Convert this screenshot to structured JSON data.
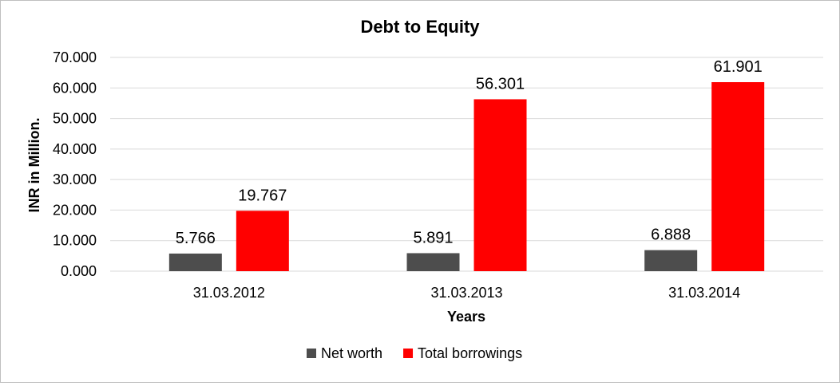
{
  "chart_data": {
    "type": "bar",
    "title": "Debt to Equity",
    "xlabel": "Years",
    "ylabel": "INR in Million.",
    "categories": [
      "31.03.2012",
      "31.03.2013",
      "31.03.2014"
    ],
    "ylim": [
      0,
      70
    ],
    "yticks": [
      "0.000",
      "10.000",
      "20.000",
      "30.000",
      "40.000",
      "50.000",
      "60.000",
      "70.000"
    ],
    "grid": true,
    "legend_position": "bottom",
    "series": [
      {
        "name": "Net worth",
        "color": "#4d4d4d",
        "values": [
          5.766,
          5.891,
          6.888
        ],
        "labels": [
          "5.766",
          "5.891",
          "6.888"
        ]
      },
      {
        "name": "Total borrowings",
        "color": "#ff0000",
        "values": [
          19.767,
          56.301,
          61.901
        ],
        "labels": [
          "19.767",
          "56.301",
          "61.901"
        ]
      }
    ]
  }
}
